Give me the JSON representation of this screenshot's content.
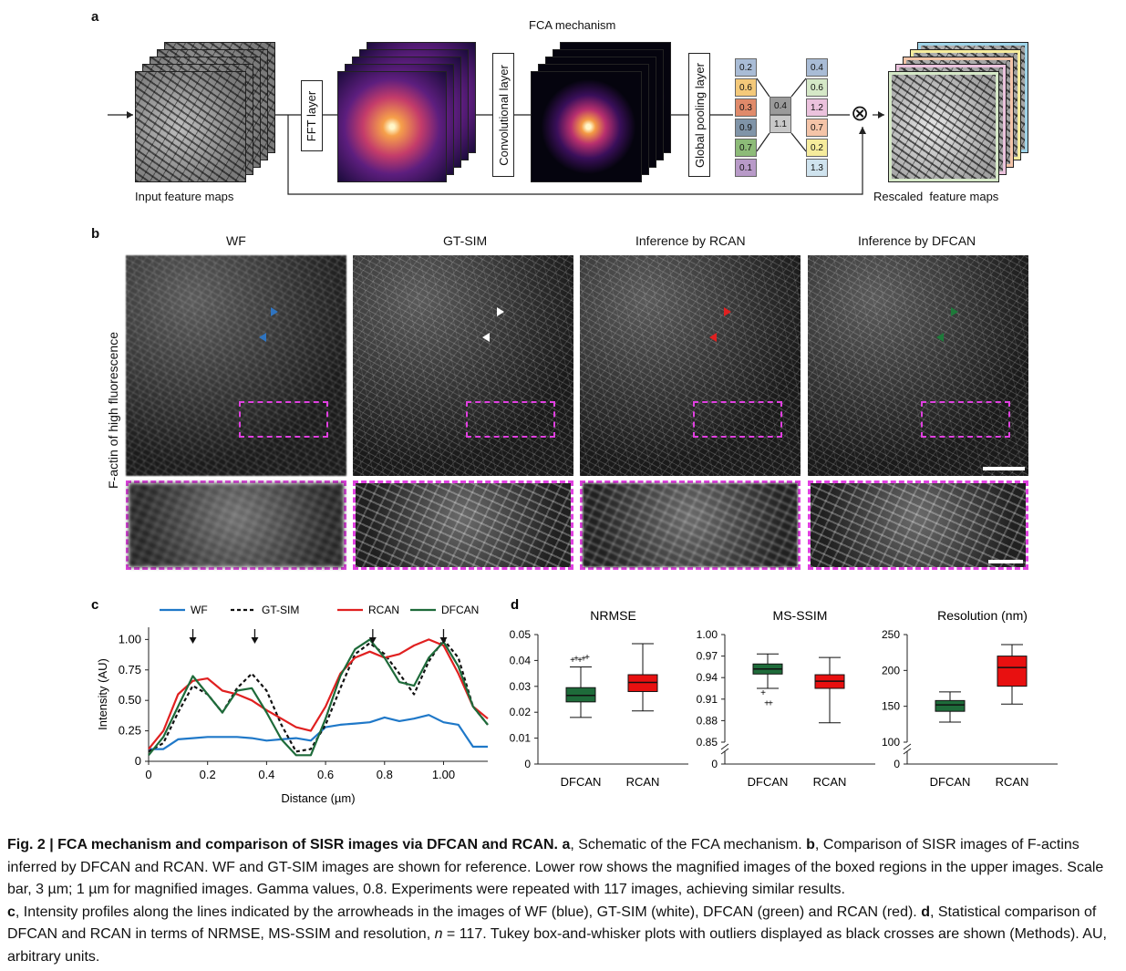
{
  "panel_a": {
    "letter": "a",
    "title": "FCA mechanism",
    "input_label": "Input feature maps",
    "fft_label": "FFT layer",
    "conv_label": "Convolutional layer",
    "gpool_label": "Global pooling layer",
    "output_label": "Rescaled  feature maps",
    "left_column": [
      "0.2",
      "0.6",
      "0.3",
      "0.9",
      "0.7",
      "0.1"
    ],
    "left_colors": [
      "#a9bcd6",
      "#f4c97a",
      "#e08a6a",
      "#8094a8",
      "#8dbb78",
      "#b89ac8"
    ],
    "middle_column": [
      "0.4",
      "1.1"
    ],
    "middle_colors": [
      "#9a9a9a",
      "#c8c8c8"
    ],
    "right_column": [
      "0.4",
      "0.6",
      "1.2",
      "0.7",
      "0.2",
      "1.3"
    ],
    "right_colors": [
      "#a9bcd6",
      "#d5e8c7",
      "#ebc2dd",
      "#f4c4a8",
      "#f6ec9c",
      "#cfe3ee"
    ],
    "multiply_symbol": "⊗"
  },
  "panel_b": {
    "letter": "b",
    "columns": [
      "WF",
      "GT-SIM",
      "Inference by RCAN",
      "Inference by DFCAN"
    ],
    "arrow_colors": [
      "#2f74c0",
      "#ffffff",
      "#e02020",
      "#1e7a3a"
    ],
    "row_label": "F-actin of high fluorescence"
  },
  "chart_data": [
    {
      "type": "line",
      "panel": "c",
      "xlabel": "Distance (µm)",
      "ylabel": "Intensity (AU)",
      "xlim": [
        0,
        1.15
      ],
      "ylim": [
        0,
        1.1
      ],
      "xticks": [
        "0",
        "0.2",
        "0.4",
        "0.6",
        "0.8",
        "1.00"
      ],
      "yticks": [
        "0",
        "0.25",
        "0.50",
        "0.75",
        "1.00"
      ],
      "x": [
        0,
        0.05,
        0.1,
        0.15,
        0.2,
        0.25,
        0.3,
        0.35,
        0.4,
        0.45,
        0.5,
        0.55,
        0.6,
        0.65,
        0.7,
        0.75,
        0.8,
        0.85,
        0.9,
        0.95,
        1.0,
        1.05,
        1.1,
        1.15
      ],
      "series": [
        {
          "name": "WF",
          "color": "#1f78c8",
          "dash": "",
          "values": [
            0.1,
            0.1,
            0.18,
            0.19,
            0.2,
            0.2,
            0.2,
            0.19,
            0.17,
            0.18,
            0.19,
            0.17,
            0.28,
            0.3,
            0.31,
            0.32,
            0.36,
            0.33,
            0.35,
            0.38,
            0.32,
            0.3,
            0.12,
            0.12
          ]
        },
        {
          "name": "GT-SIM",
          "color": "#111111",
          "dash": "4 3",
          "values": [
            0.08,
            0.15,
            0.4,
            0.62,
            0.55,
            0.4,
            0.6,
            0.72,
            0.58,
            0.3,
            0.08,
            0.1,
            0.3,
            0.6,
            0.88,
            0.97,
            0.88,
            0.72,
            0.55,
            0.82,
            1.0,
            0.85,
            0.45,
            0.3
          ]
        },
        {
          "name": "RCAN",
          "color": "#e02020",
          "dash": "",
          "values": [
            0.1,
            0.25,
            0.55,
            0.66,
            0.68,
            0.58,
            0.55,
            0.5,
            0.42,
            0.35,
            0.28,
            0.25,
            0.45,
            0.72,
            0.85,
            0.9,
            0.85,
            0.88,
            0.95,
            1.0,
            0.95,
            0.72,
            0.45,
            0.35
          ]
        },
        {
          "name": "DFCAN",
          "color": "#1e6b3a",
          "dash": "",
          "values": [
            0.05,
            0.2,
            0.45,
            0.7,
            0.55,
            0.4,
            0.58,
            0.6,
            0.4,
            0.18,
            0.05,
            0.05,
            0.35,
            0.7,
            0.92,
            1.0,
            0.85,
            0.65,
            0.62,
            0.85,
            0.98,
            0.78,
            0.45,
            0.3
          ]
        }
      ],
      "arrows_at": [
        0.15,
        0.36,
        0.76,
        1.0
      ],
      "panel_letter": "c"
    },
    {
      "type": "box",
      "panel": "d",
      "panel_letter": "d",
      "title": "NRMSE",
      "categories": [
        "DFCAN",
        "RCAN"
      ],
      "ylim": [
        0,
        0.05
      ],
      "yticks": [
        "0",
        "0.01",
        "0.02",
        "0.03",
        "0.04",
        "0.05"
      ],
      "boxes": [
        {
          "name": "DFCAN",
          "color": "#1e6b3a",
          "whisker_low": 0.018,
          "q1": 0.024,
          "median": 0.0265,
          "q3": 0.0295,
          "whisker_high": 0.0375,
          "outliers": [
            0.0405,
            0.041,
            0.0405,
            0.041,
            0.0415
          ]
        },
        {
          "name": "RCAN",
          "color": "#e81010",
          "whisker_low": 0.0205,
          "q1": 0.028,
          "median": 0.0315,
          "q3": 0.0345,
          "whisker_high": 0.0465,
          "outliers": []
        }
      ]
    },
    {
      "type": "box",
      "panel": "d",
      "title": "MS-SSIM",
      "categories": [
        "DFCAN",
        "RCAN"
      ],
      "ylim": [
        0.85,
        1.0
      ],
      "axis_break": true,
      "yticks": [
        "0",
        "0.85",
        "0.88",
        "0.91",
        "0.94",
        "0.97",
        "1.00"
      ],
      "boxes": [
        {
          "name": "DFCAN",
          "color": "#1e6b3a",
          "whisker_low": 0.925,
          "q1": 0.945,
          "median": 0.952,
          "q3": 0.959,
          "whisker_high": 0.973,
          "outliers": [
            0.92,
            0.905,
            0.905
          ]
        },
        {
          "name": "RCAN",
          "color": "#e81010",
          "whisker_low": 0.877,
          "q1": 0.925,
          "median": 0.935,
          "q3": 0.944,
          "whisker_high": 0.968,
          "outliers": []
        }
      ]
    },
    {
      "type": "box",
      "panel": "d",
      "title": "Resolution (nm)",
      "categories": [
        "DFCAN",
        "RCAN"
      ],
      "ylim": [
        100,
        250
      ],
      "axis_break": true,
      "yticks": [
        "0",
        "100",
        "150",
        "200",
        "250"
      ],
      "boxes": [
        {
          "name": "DFCAN",
          "color": "#1e6b3a",
          "whisker_low": 128,
          "q1": 143,
          "median": 152,
          "q3": 158,
          "whisker_high": 170,
          "outliers": []
        },
        {
          "name": "RCAN",
          "color": "#e81010",
          "whisker_low": 153,
          "q1": 178,
          "median": 204,
          "q3": 220,
          "whisker_high": 236,
          "outliers": []
        }
      ]
    }
  ],
  "caption": {
    "lead": "Fig. 2 | FCA mechanism and comparison of SISR images via DFCAN and RCAN.",
    "a_bold": "a",
    "a_text": ", Schematic of the FCA mechanism.",
    "b_bold": "b",
    "b_text": ", Comparison of SISR images of F-actins inferred by DFCAN and RCAN. WF and GT-SIM images are shown for reference. Lower row shows the magnified images of the boxed regions in the upper images. Scale bar, 3 µm; 1 µm for magnified images. Gamma values, 0.8. Experiments were repeated with 117 images, achieving similar results.",
    "c_bold": "c",
    "c_text": ", Intensity profiles along the lines indicated by the arrowheads in the images of WF (blue), GT-SIM (white), DFCAN (green) and RCAN (red).",
    "d_bold": "d",
    "d_text_1": ", Statistical comparison of DFCAN and RCAN in terms of NRMSE, MS-SSIM and resolution, ",
    "d_n": "n",
    "d_text_2": " = 117. Tukey box-and-whisker plots with outliers displayed as black crosses are shown (Methods). AU, arbitrary units."
  }
}
